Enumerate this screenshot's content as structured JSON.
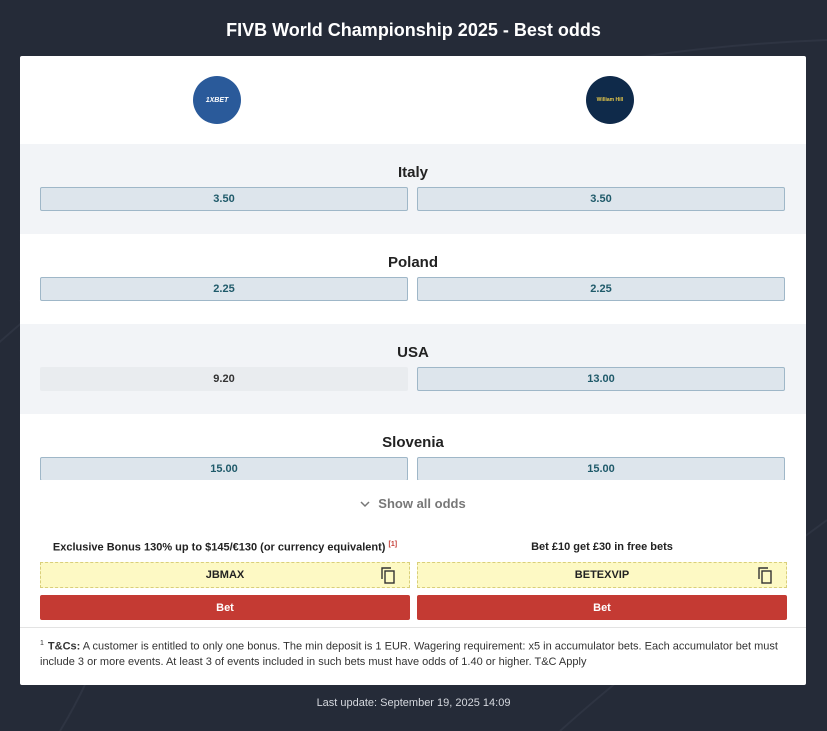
{
  "header": {
    "title": "FIVB World Championship 2025 - Best odds"
  },
  "bookmakers": [
    {
      "logo": "1XBET"
    },
    {
      "logo": "William Hill"
    }
  ],
  "rows": [
    {
      "team": "Italy",
      "odds": [
        "3.50",
        "3.50"
      ],
      "best": [
        true,
        true
      ]
    },
    {
      "team": "Poland",
      "odds": [
        "2.25",
        "2.25"
      ],
      "best": [
        true,
        true
      ]
    },
    {
      "team": "USA",
      "odds": [
        "9.20",
        "13.00"
      ],
      "best": [
        false,
        true
      ]
    },
    {
      "team": "Slovenia",
      "odds": [
        "15.00",
        "15.00"
      ],
      "best": [
        true,
        true
      ]
    }
  ],
  "show_all": "Show all odds",
  "offers": [
    {
      "text": "Exclusive Bonus 130% up to $145/€130 (or currency equivalent)",
      "note": "[1]",
      "code": "JBMAX",
      "button": "Bet"
    },
    {
      "text": "Bet £10 get £30 in free bets",
      "code": "BETEXVIP",
      "button": "Bet"
    }
  ],
  "terms": {
    "marker": "1",
    "label": "T&Cs:",
    "text": "A customer is entitled to only one bonus. The min deposit is 1 EUR. Wagering requirement: x5 in accumulator bets. Each accumulator bet must include 3 or more events. At least 3 of events included in such bets must have odds of 1.40 or higher. T&C Apply"
  },
  "footer": "Last update: September 19, 2025 14:09"
}
